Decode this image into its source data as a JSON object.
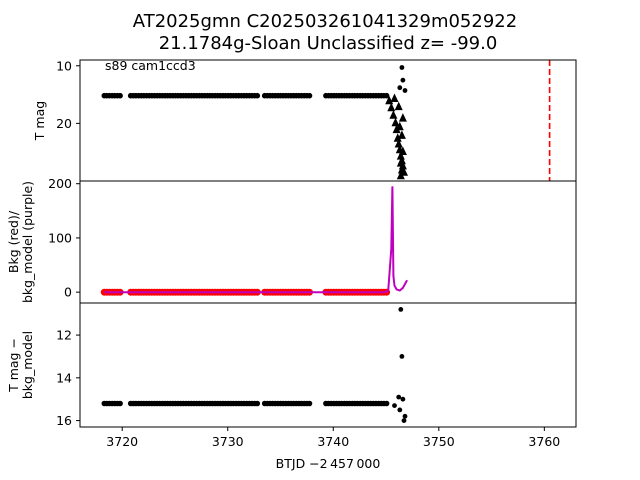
{
  "chart_data": {
    "title_line1": "AT2025gmn  C202503261041329m052922",
    "title_line2": "21.1784g-Sloan Unclassified z= -99.0",
    "xlabel": "BTJD −2 457 000",
    "xlim": [
      3716,
      3763
    ],
    "xticks": [
      3720,
      3730,
      3740,
      3750,
      3760
    ],
    "panels": [
      {
        "type": "scatter",
        "ylabel": "T mag",
        "ylim": [
          9,
          30
        ],
        "inverted": true,
        "yticks": [
          10,
          20
        ],
        "annotation": "s89 cam1ccd3",
        "dashed_vline_x": 3760.5,
        "dashed_vline_color": "#ff0000",
        "series": [
          {
            "marker": "circle",
            "color": "#000000",
            "x_ranges": [
              [
                3718.3,
                3719.9
              ],
              [
                3720.8,
                3733.0
              ],
              [
                3733.5,
                3737.8
              ],
              [
                3739.3,
                3745.2
              ]
            ],
            "y": 15.2
          },
          {
            "marker": "triangle",
            "color": "#000000",
            "x": [
              3745.3,
              3745.5,
              3745.7,
              3745.9,
              3746.0,
              3746.1,
              3746.2,
              3746.3,
              3746.4,
              3746.5,
              3746.6,
              3746.7,
              3746.4,
              3746.5,
              3746.3,
              3746.6,
              3745.8,
              3746.2,
              3746.5,
              3746.4,
              3746.6
            ],
            "y": [
              16.0,
              17.2,
              18.5,
              19.8,
              21.0,
              22.5,
              23.5,
              24.5,
              25.6,
              26.4,
              27.3,
              28.4,
              29.0,
              22.0,
              20.5,
              24.8,
              15.6,
              17.0,
              28.0,
              26.8,
              19.0
            ]
          },
          {
            "marker": "circle",
            "color": "#000000",
            "x": [
              3746.5,
              3746.6,
              3746.3,
              3746.8
            ],
            "y": [
              10.3,
              12.5,
              13.8,
              14.3
            ]
          }
        ]
      },
      {
        "type": "line+scatter",
        "ylabel_lines": [
          "Bkg (red)/",
          "bkg_model (purple)"
        ],
        "ylim": [
          -20,
          205
        ],
        "yticks": [
          0,
          100,
          200
        ],
        "series": [
          {
            "name": "Bkg (red)",
            "color": "#ff0000",
            "marker": "circle",
            "x_ranges": [
              [
                3718.3,
                3719.9
              ],
              [
                3720.8,
                3733.0
              ],
              [
                3733.5,
                3737.8
              ],
              [
                3739.3,
                3745.2
              ]
            ],
            "y": 0
          },
          {
            "name": "bkg_model (purple)",
            "color": "#bf00bf",
            "type": "line",
            "x": [
              3718.3,
              3719.9,
              3720.8,
              3733.0,
              3733.5,
              3737.8,
              3739.3,
              3744.8,
              3745.2,
              3745.5,
              3745.6,
              3745.7,
              3745.8,
              3746.0,
              3746.3,
              3746.6,
              3746.8,
              3747.0
            ],
            "y": [
              0,
              0,
              0,
              0,
              0,
              0,
              0,
              0,
              2,
              80,
              195,
              30,
              12,
              5,
              3,
              8,
              15,
              22
            ]
          }
        ]
      },
      {
        "type": "scatter",
        "ylabel_lines": [
          "T mag −",
          "bkg_model"
        ],
        "ylim": [
          16.3,
          10.5
        ],
        "inverted": true,
        "yticks": [
          12,
          14,
          16
        ],
        "series": [
          {
            "marker": "circle",
            "color": "#000000",
            "x_ranges": [
              [
                3718.3,
                3719.9
              ],
              [
                3720.8,
                3733.0
              ],
              [
                3733.5,
                3737.8
              ],
              [
                3739.3,
                3745.2
              ]
            ],
            "y": 15.2
          },
          {
            "marker": "circle",
            "color": "#000000",
            "x": [
              3746.4,
              3746.5,
              3746.2,
              3746.6,
              3746.8,
              3746.7,
              3745.8,
              3746.3
            ],
            "y": [
              10.8,
              13.0,
              14.9,
              15.0,
              15.8,
              16.0,
              15.3,
              15.5
            ]
          }
        ]
      }
    ]
  }
}
